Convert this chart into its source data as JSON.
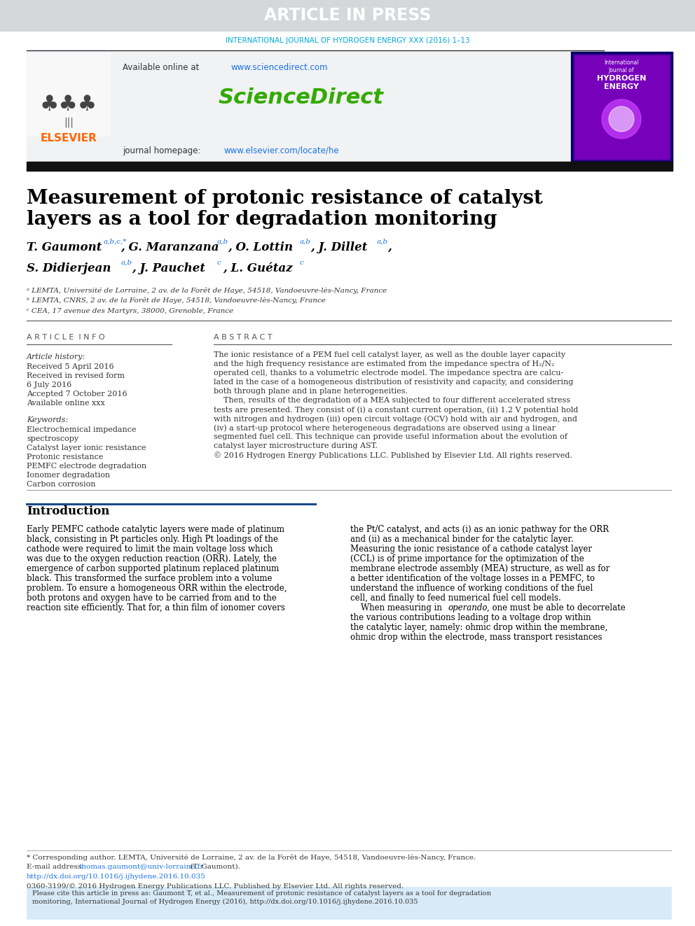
{
  "title_banner_text": "ARTICLE IN PRESS",
  "title_banner_bg": "#d4d8db",
  "title_banner_text_color": "#ffffff",
  "journal_line": "INTERNATIONAL JOURNAL OF HYDROGEN ENERGY XXX (2016) 1–13",
  "journal_line_color": "#00aadd",
  "article_title_line1": "Measurement of protonic resistance of catalyst",
  "article_title_line2": "layers as a tool for degradation monitoring",
  "article_title_color": "#000000",
  "affil_a": "ᵃ LEMTA, Université de Lorraine, 2 av. de la Forêt de Haye, 54518, Vandoeuvre-lès-Nancy, France",
  "affil_b": "ᵇ LEMTA, CNRS, 2 av. de la Forêt de Haye, 54518, Vandoeuvre-lès-Nancy, France",
  "affil_c": "ᶜ CEA, 17 avenue des Martyrs, 38000, Grenoble, France",
  "article_info_header": "A R T I C L E  I N F O",
  "abstract_header": "A B S T R A C T",
  "article_history_label": "Article history:",
  "received1": "Received 5 April 2016",
  "received2": "Received in revised form",
  "received2b": "6 July 2016",
  "accepted": "Accepted 7 October 2016",
  "available": "Available online xxx",
  "keywords_label": "Keywords:",
  "keywords": [
    "Electrochemical impedance\nspectroscopy",
    "Catalyst layer ionic resistance",
    "Protonic resistance",
    "PEMFC electrode degradation",
    "Ionomer degradation",
    "Carbon corrosion"
  ],
  "abstract_lines": [
    "The ionic resistance of a PEM fuel cell catalyst layer, as well as the double layer capacity",
    "and the high frequency resistance are estimated from the impedance spectra of H₂/N₂",
    "operated cell, thanks to a volumetric electrode model. The impedance spectra are calcu-",
    "lated in the case of a homogeneous distribution of resistivity and capacity, and considering",
    "both through plane and in plane heterogeneities.",
    "    Then, results of the degradation of a MEA subjected to four different accelerated stress",
    "tests are presented. They consist of (i) a constant current operation, (ii) 1.2 V potential hold",
    "with nitrogen and hydrogen (iii) open circuit voltage (OCV) hold with air and hydrogen, and",
    "(iv) a start-up protocol where heterogeneous degradations are observed using a linear",
    "segmented fuel cell. This technique can provide useful information about the evolution of",
    "catalyst layer microstructure during AST.",
    "© 2016 Hydrogen Energy Publications LLC. Published by Elsevier Ltd. All rights reserved."
  ],
  "intro_header": "Introduction",
  "left_intro_lines": [
    "Early PEMFC cathode catalytic layers were made of platinum",
    "black, consisting in Pt particles only. High Pt loadings of the",
    "cathode were required to limit the main voltage loss which",
    "was due to the oxygen reduction reaction (ORR). Lately, the",
    "emergence of carbon supported platinum replaced platinum",
    "black. This transformed the surface problem into a volume",
    "problem. To ensure a homogeneous ORR within the electrode,",
    "both protons and oxygen have to be carried from and to the",
    "reaction site efficiently. That for, a thin film of ionomer covers"
  ],
  "right_intro_lines": [
    "the Pt/C catalyst, and acts (i) as an ionic pathway for the ORR",
    "and (ii) as a mechanical binder for the catalytic layer.",
    "Measuring the ionic resistance of a cathode catalyst layer",
    "(CCL) is of prime importance for the optimization of the",
    "membrane electrode assembly (MEA) structure, as well as for",
    "a better identification of the voltage losses in a PEMFC, to",
    "understand the influence of working conditions of the fuel",
    "cell, and finally to feed numerical fuel cell models.",
    "    When measuring in operando, one must be able to decorrelate",
    "the various contributions leading to a voltage drop within",
    "the catalytic layer, namely: ohmic drop within the membrane,",
    "ohmic drop within the electrode, mass transport resistances"
  ],
  "footnote_star": "* Corresponding author. LEMTA, Université de Lorraine, 2 av. de la Forêt de Haye, 54518, Vandoeuvre-lès-Nancy, France.",
  "footnote_email_label": "E-mail address: ",
  "footnote_email": "thomas.gaumont@univ-lorraine.fr",
  "footnote_email_suffix": " (T. Gaumont).",
  "footnote_doi": "http://dx.doi.org/10.1016/j.ijhydene.2016.10.035",
  "footnote_issn": "0360-3199/© 2016 Hydrogen Energy Publications LLC. Published by Elsevier Ltd. All rights reserved.",
  "cite_lines": [
    "Please cite this article in press as: Gaumont T, et al., Measurement of protonic resistance of catalyst layers as a tool for degradation",
    "monitoring, International Journal of Hydrogen Energy (2016), http://dx.doi.org/10.1016/j.ijhydene.2016.10.035"
  ],
  "bg_color": "#ffffff",
  "elsevier_color": "#ff6600",
  "sciencedirect_color": "#33aa00",
  "link_color": "#1a73e8",
  "header_bg": "#f0f2f4",
  "sup_color": "#1a73e8"
}
